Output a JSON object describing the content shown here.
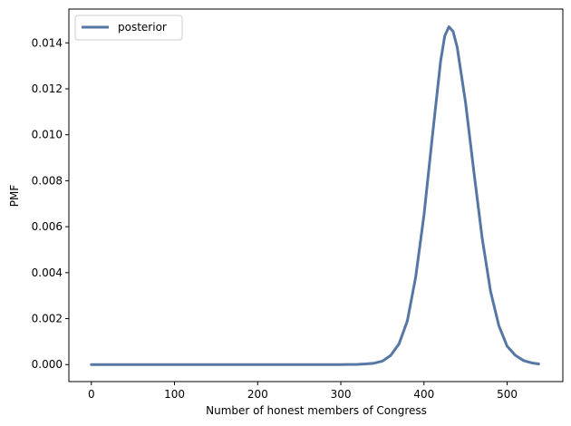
{
  "chart_data": {
    "type": "line",
    "xlabel": "Number of honest members of Congress",
    "ylabel": "PMF",
    "xlim": [
      -27,
      567
    ],
    "ylim": [
      -0.00074,
      0.01547
    ],
    "xticks": [
      0,
      100,
      200,
      300,
      400,
      500
    ],
    "xtick_labels": [
      "0",
      "100",
      "200",
      "300",
      "400",
      "500"
    ],
    "yticks": [
      0.0,
      0.002,
      0.004,
      0.006,
      0.008,
      0.01,
      0.012,
      0.014
    ],
    "ytick_labels": [
      "0.000",
      "0.002",
      "0.004",
      "0.006",
      "0.008",
      "0.010",
      "0.012",
      "0.014"
    ],
    "grid": false,
    "legend_position": "top-left",
    "line_color": "#5677a4",
    "series": [
      {
        "name": "posterior",
        "x": [
          0,
          50,
          100,
          150,
          200,
          250,
          300,
          320,
          330,
          340,
          350,
          360,
          370,
          380,
          390,
          400,
          410,
          420,
          425,
          430,
          435,
          440,
          450,
          460,
          470,
          480,
          490,
          500,
          510,
          520,
          530,
          538
        ],
        "y": [
          0,
          0,
          0,
          0,
          0,
          0,
          0,
          1e-05,
          3e-05,
          6e-05,
          0.00015,
          0.0004,
          0.0009,
          0.0019,
          0.0038,
          0.0065,
          0.0099,
          0.0132,
          0.0143,
          0.0147,
          0.0145,
          0.0138,
          0.0114,
          0.0084,
          0.0055,
          0.0032,
          0.0017,
          0.0008,
          0.0004,
          0.00017,
          7e-05,
          3e-05
        ]
      }
    ]
  }
}
